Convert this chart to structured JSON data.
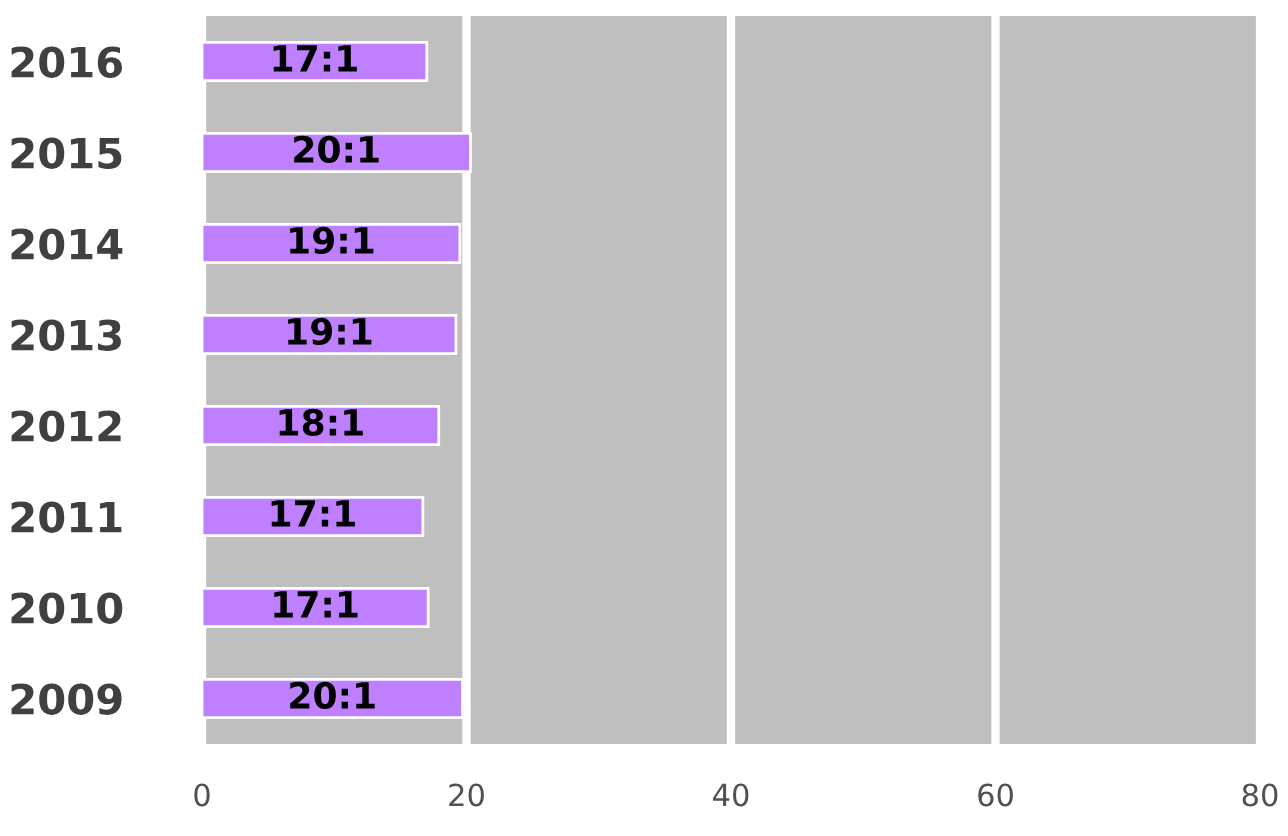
{
  "chart_data": {
    "type": "bar",
    "orientation": "horizontal",
    "categories": [
      "2016",
      "2015",
      "2014",
      "2013",
      "2012",
      "2011",
      "2010",
      "2009"
    ],
    "values": [
      17,
      20.3,
      19.5,
      19.2,
      17.9,
      16.7,
      17.1,
      19.7
    ],
    "value_labels": [
      "17:1",
      "20:1",
      "19:1",
      "19:1",
      "18:1",
      "17:1",
      "17:1",
      "20:1"
    ],
    "color": "#bf80ff",
    "xlim": [
      0,
      80
    ],
    "xticks": [
      0,
      20,
      40,
      60,
      80
    ],
    "grid": "x",
    "legend": false
  }
}
